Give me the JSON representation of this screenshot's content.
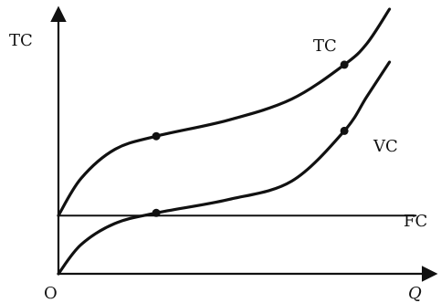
{
  "chart_data": {
    "type": "line",
    "title": "",
    "ylabel": "TC",
    "xlabel": "Q",
    "origin_label": "O",
    "xlim": [
      0,
      10
    ],
    "ylim": [
      0,
      10
    ],
    "grid": false,
    "legend": "none",
    "series": [
      {
        "name": "TC",
        "points": [
          [
            0,
            2.2
          ],
          [
            0.6,
            3.6
          ],
          [
            1.5,
            4.7
          ],
          [
            2.6,
            5.2
          ],
          [
            4.5,
            5.8
          ],
          [
            6.2,
            6.6
          ],
          [
            7.6,
            7.9
          ],
          [
            8.2,
            8.7
          ],
          [
            8.8,
            10
          ]
        ],
        "marked_points": [
          [
            2.6,
            5.2
          ],
          [
            7.6,
            7.9
          ]
        ]
      },
      {
        "name": "VC",
        "points": [
          [
            0,
            0
          ],
          [
            0.6,
            1.1
          ],
          [
            1.5,
            1.9
          ],
          [
            2.6,
            2.3
          ],
          [
            4.5,
            2.8
          ],
          [
            6.2,
            3.5
          ],
          [
            7.6,
            5.4
          ],
          [
            8.2,
            6.7
          ],
          [
            8.8,
            8.0
          ]
        ],
        "marked_points": [
          [
            2.6,
            2.3
          ],
          [
            7.6,
            5.4
          ]
        ]
      },
      {
        "name": "FC",
        "points": [
          [
            0,
            2.2
          ],
          [
            9.5,
            2.2
          ]
        ],
        "marked_points": []
      }
    ]
  }
}
